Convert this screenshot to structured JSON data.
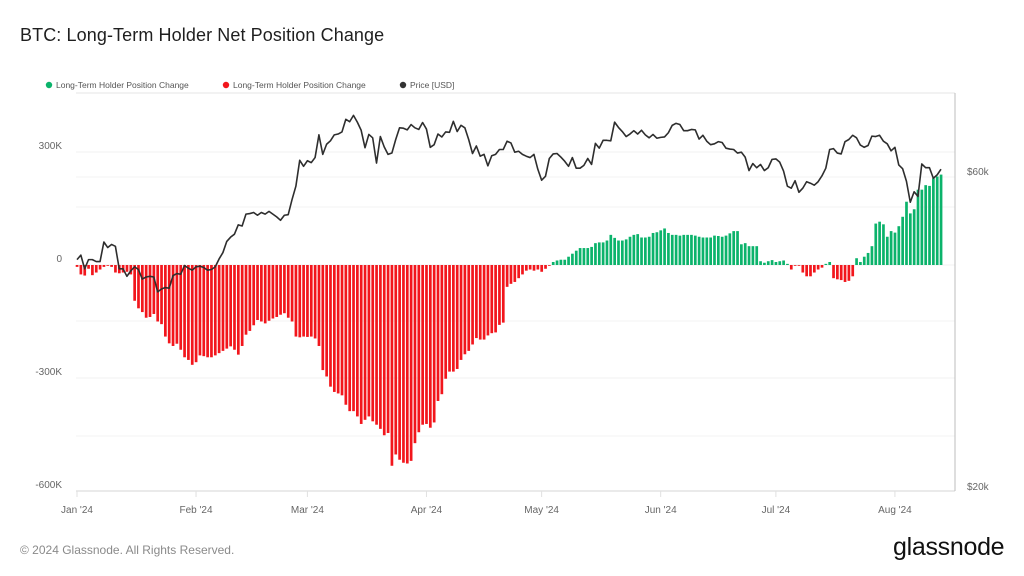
{
  "title": "BTC: Long-Term Holder Net Position Change",
  "footer": "© 2024 Glassnode. All Rights Reserved.",
  "logo": "glassnode",
  "legend": [
    {
      "label": "Long-Term Holder Position Change",
      "color": "#0bb36b"
    },
    {
      "label": "Long-Term Holder Position Change",
      "color": "#f2161c"
    },
    {
      "label": "Price [USD]",
      "color": "#333333"
    }
  ],
  "chart_data": {
    "type": "bar+line",
    "title": "BTC: Long-Term Holder Net Position Change",
    "x_ticks": [
      "Jan '24",
      "Feb '24",
      "Mar '24",
      "Apr '24",
      "May '24",
      "Jun '24",
      "Jul '24",
      "Aug '24"
    ],
    "left_axis": {
      "ticks": [
        "300K",
        "0",
        "-300K",
        "-600K"
      ],
      "tick_values": [
        300,
        0,
        -300,
        -600
      ],
      "unit": "K BTC",
      "range": [
        -600,
        400
      ]
    },
    "right_axis": {
      "ticks": [
        "$60k",
        "$20k"
      ],
      "tick_values": [
        60,
        20
      ],
      "unit": "k USD",
      "scale": "log"
    },
    "grid": true,
    "legend_position": "top-left",
    "series": [
      {
        "name": "Long-Term Holder Position Change",
        "type": "bar",
        "positive_color": "#0bb36b",
        "negative_color": "#f2161c",
        "daily_values_by_month": {
          "Jan '24": [
            -5,
            -25,
            -28,
            -10,
            -27,
            -20,
            -12,
            -5,
            -2,
            -5,
            -20,
            -22,
            -20,
            -18,
            -25,
            -95,
            -115,
            -125,
            -140,
            -138,
            -130,
            -150,
            -157,
            -190,
            -208,
            -215,
            -209,
            -225,
            -245,
            -252,
            -265
          ],
          "Feb '24": [
            -258,
            -240,
            -242,
            -245,
            -245,
            -240,
            -234,
            -228,
            -222,
            -216,
            -225,
            -238,
            -215,
            -185,
            -175,
            -160,
            -146,
            -150,
            -155,
            -148,
            -142,
            -138,
            -132,
            -128,
            -140,
            -150,
            -190,
            -192,
            -190
          ],
          "Mar '24": [
            -191,
            -190,
            -195,
            -215,
            -279,
            -296,
            -323,
            -337,
            -341,
            -346,
            -371,
            -388,
            -388,
            -402,
            -422,
            -411,
            -402,
            -415,
            -424,
            -435,
            -452,
            -446,
            -533,
            -503,
            -517,
            -525,
            -527,
            -520,
            -473,
            -444,
            -424
          ],
          "Apr '24": [
            -422,
            -432,
            -418,
            -361,
            -343,
            -302,
            -283,
            -283,
            -276,
            -252,
            -237,
            -228,
            -211,
            -194,
            -198,
            -198,
            -187,
            -181,
            -179,
            -159,
            -153,
            -58,
            -50,
            -45,
            -35,
            -25,
            -15,
            -12,
            -15,
            -12
          ],
          "May '24": [
            -18,
            -10,
            -2,
            8,
            12,
            14,
            14,
            22,
            30,
            38,
            45,
            45,
            45,
            48,
            58,
            60,
            60,
            65,
            80,
            72,
            65,
            65,
            68,
            75,
            80,
            82,
            73,
            73,
            75,
            85,
            87
          ],
          "Jun '24": [
            92,
            97,
            85,
            80,
            80,
            78,
            80,
            80,
            80,
            78,
            75,
            73,
            73,
            73,
            78,
            77,
            75,
            78,
            84,
            90,
            90,
            55,
            58,
            50,
            50,
            50,
            10,
            6,
            10,
            13
          ],
          "Jul '24": [
            8,
            10,
            12,
            3,
            -12,
            -2,
            -2,
            -20,
            -30,
            -30,
            -20,
            -12,
            -7,
            3,
            8,
            -35,
            -38,
            -40,
            -45,
            -42,
            -30,
            18,
            8,
            22,
            32,
            50,
            110,
            115,
            108,
            75,
            90
          ],
          "Aug '24": [
            86,
            103,
            128,
            168,
            137,
            148,
            200,
            200,
            212,
            210,
            230,
            235,
            240
          ]
        }
      },
      {
        "name": "Price [USD]",
        "type": "line",
        "color": "#333333",
        "daily_values_by_month": {
          "Jan '24": [
            44.2,
            44.9,
            42.8,
            44.2,
            44.2,
            43.9,
            43.9,
            47,
            46.1,
            46.6,
            46.3,
            42.8,
            42.8,
            41.7,
            42.5,
            43.1,
            42.7,
            41.3,
            41.6,
            41.7,
            41.6,
            39.5,
            39.9,
            40.1,
            40,
            41.8,
            42.1,
            42,
            43.3,
            42.9,
            42.6
          ],
          "Feb '24": [
            43.1,
            43.2,
            43,
            42.6,
            42.7,
            43.1,
            44.3,
            45.3,
            47.1,
            47.8,
            48.3,
            49.9,
            49.7,
            51.8,
            51.9,
            52.1,
            51.6,
            52.1,
            51.8,
            52.3,
            51.8,
            51.3,
            50.7,
            51.6,
            51.7,
            54.5,
            57.1,
            62.5,
            61.2
          ],
          "Mar '24": [
            62.4,
            62,
            63.1,
            68.3,
            63.8,
            66.1,
            66.9,
            68.3,
            68.5,
            69,
            72.1,
            71.5,
            73.1,
            71.4,
            69.4,
            65.3,
            68.4,
            67.6,
            61.9,
            67.9,
            65.5,
            63.8,
            64.1,
            67.2,
            70,
            69.9,
            69.5,
            70.8,
            70,
            69.6,
            71.3
          ],
          "Apr '24": [
            69.7,
            65.4,
            66,
            68.5,
            67.8,
            69,
            68.9,
            71.6,
            69.1,
            70.6,
            70,
            67.2,
            64,
            65.7,
            63.4,
            63.8,
            61.3,
            63.5,
            63.8,
            64.9,
            64.9,
            66.8,
            66.4,
            64.3,
            64.5,
            63.8,
            63.4,
            63.1,
            63.8,
            60.6
          ],
          "May '24": [
            58.3,
            59.1,
            62.9,
            63.9,
            64,
            63.2,
            62.3,
            61.2,
            63.1,
            60.8,
            60.8,
            61.4,
            62.9,
            61.6,
            66.3,
            65.2,
            67,
            67,
            66.9,
            71.4,
            70.1,
            69.1,
            67.9,
            68.5,
            69.3,
            68.5,
            69.4,
            68.3,
            67.6,
            68.4,
            67.5
          ],
          "Jun '24": [
            67.7,
            67.8,
            68.8,
            70.6,
            71.1,
            70.8,
            69.3,
            69.3,
            69.6,
            69.5,
            67.3,
            68.2,
            66.8,
            66,
            66.2,
            66.7,
            66.5,
            65.2,
            65,
            64.9,
            64.1,
            64.3,
            63.2,
            60.3,
            61.8,
            60.9,
            61.6,
            60.3,
            60.9,
            62.7
          ],
          "Jul '24": [
            62.8,
            62.1,
            60.2,
            57.1,
            56.7,
            58.2,
            55.9,
            56.7,
            58,
            57.7,
            57.3,
            58,
            59.2,
            60.8,
            64.9,
            65.1,
            64.1,
            63.9,
            66.7,
            67.2,
            68.2,
            67.6,
            65.9,
            65.4,
            65.8,
            68,
            67.9,
            68.2,
            66.8,
            66.2,
            64.6
          ],
          "Aug '24": [
            65.4,
            61.5,
            60.7,
            58.1,
            54,
            56,
            55.1,
            61.7,
            60.9,
            60.9,
            58.7,
            59.4,
            60.6
          ]
        }
      }
    ]
  }
}
